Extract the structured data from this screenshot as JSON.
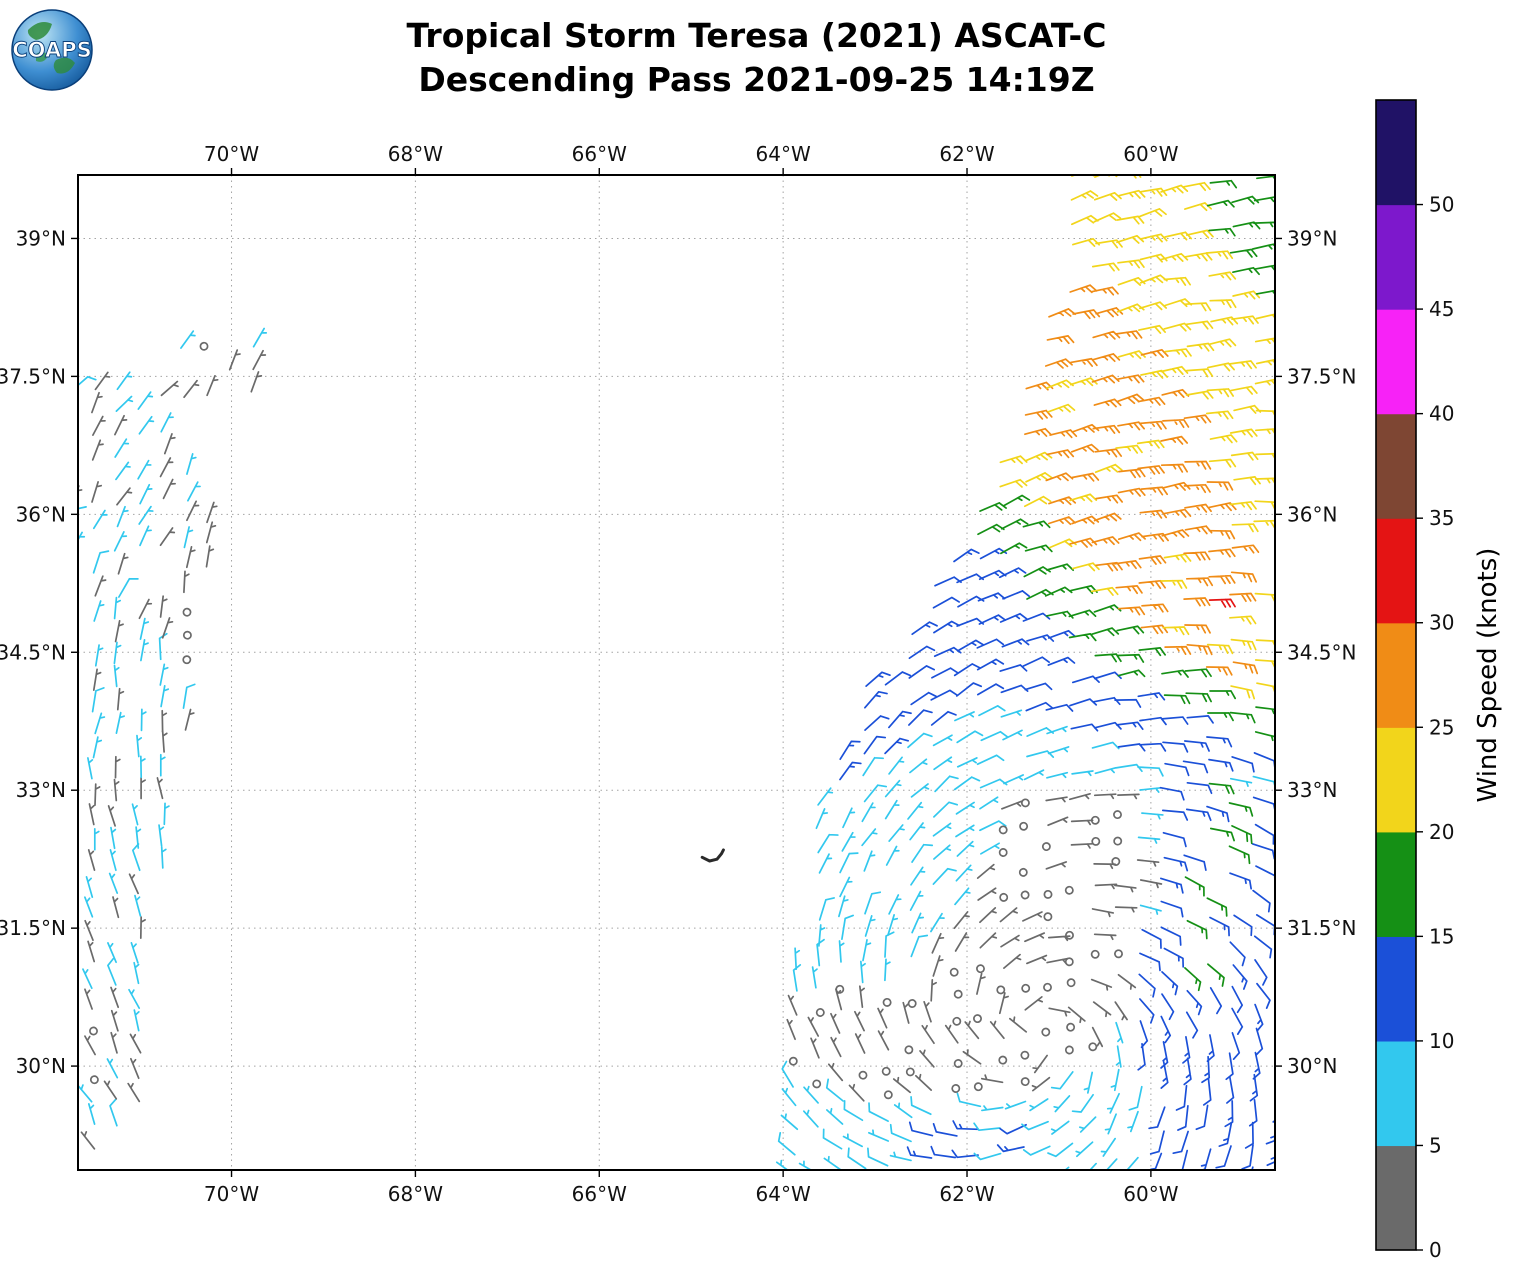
{
  "header": {
    "logo_text": "COAPS",
    "title_line1": "Tropical Storm Teresa (2021) ASCAT-C",
    "title_line2": "Descending Pass 2021-09-25 14:19Z"
  },
  "chart_data": {
    "type": "scatter",
    "subtype": "wind-barb-map",
    "title": "Tropical Storm Teresa (2021) ASCAT-C",
    "subtitle": "Descending Pass 2021-09-25 14:19Z",
    "grid": "dashed",
    "xlim": [
      -71.67,
      -58.65
    ],
    "ylim": [
      28.87,
      39.69
    ],
    "x_ticks": [
      {
        "value": -70,
        "label": "70°W"
      },
      {
        "value": -68,
        "label": "68°W"
      },
      {
        "value": -66,
        "label": "66°W"
      },
      {
        "value": -64,
        "label": "64°W"
      },
      {
        "value": -62,
        "label": "62°W"
      },
      {
        "value": -60,
        "label": "60°W"
      }
    ],
    "y_ticks": [
      {
        "value": 39,
        "label": "39°N"
      },
      {
        "value": 37.5,
        "label": "37.5°N"
      },
      {
        "value": 36,
        "label": "36°N"
      },
      {
        "value": 34.5,
        "label": "34.5°N"
      },
      {
        "value": 33,
        "label": "33°N"
      },
      {
        "value": 31.5,
        "label": "31.5°N"
      },
      {
        "value": 30,
        "label": "30°N"
      }
    ],
    "colorbar": {
      "label": "Wind Speed (knots)",
      "ticks": [
        0,
        5,
        10,
        15,
        20,
        25,
        30,
        35,
        40,
        45,
        50
      ],
      "colors": [
        {
          "range": [
            0,
            5
          ],
          "hex": "#6a6a6a",
          "name": "gray"
        },
        {
          "range": [
            5,
            10
          ],
          "hex": "#32c8ee",
          "name": "cyan"
        },
        {
          "range": [
            10,
            15
          ],
          "hex": "#1b50d8",
          "name": "blue"
        },
        {
          "range": [
            15,
            20
          ],
          "hex": "#159015",
          "name": "green"
        },
        {
          "range": [
            20,
            25
          ],
          "hex": "#f2d51b",
          "name": "yellow"
        },
        {
          "range": [
            25,
            30
          ],
          "hex": "#f08c16",
          "name": "orange"
        },
        {
          "range": [
            30,
            35
          ],
          "hex": "#e41414",
          "name": "red"
        },
        {
          "range": [
            35,
            40
          ],
          "hex": "#7e4633",
          "name": "brown"
        },
        {
          "range": [
            40,
            45
          ],
          "hex": "#f722f7",
          "name": "magenta"
        },
        {
          "range": [
            45,
            50
          ],
          "hex": "#7d18cc",
          "name": "purple"
        },
        {
          "range": [
            50,
            55
          ],
          "hex": "#201266",
          "name": "dark-navy"
        }
      ]
    },
    "storm_center": {
      "lon": -61.3,
      "lat": 30.4
    },
    "land": {
      "bermuda": [
        [
          -64.88,
          32.27
        ],
        [
          -64.8,
          32.23
        ],
        [
          -64.72,
          32.25
        ],
        [
          -64.67,
          32.31
        ],
        [
          -64.65,
          32.35
        ]
      ]
    },
    "barb_field": {
      "units": "knots",
      "grid_spacing_deg": 0.25,
      "swaths": [
        {
          "name": "west-swath",
          "direction_model": "ambient",
          "dir_base": 0,
          "dir_per_lat": 8,
          "dir_jitter": 30,
          "default_speed": 5.5,
          "speed_jitter": 2.5,
          "dropout": 0.12,
          "row_shear": 0.05,
          "polygon": [
            [
              -71.75,
              37.45
            ],
            [
              -71.05,
              37.4
            ],
            [
              -70.55,
              36.7
            ],
            [
              -70.22,
              35.9
            ],
            [
              -70.25,
              34.9
            ],
            [
              -70.5,
              33.6
            ],
            [
              -70.75,
              31.9
            ],
            [
              -70.95,
              30.3
            ],
            [
              -71.05,
              28.9
            ],
            [
              -71.75,
              28.9
            ]
          ],
          "speed_zones": [
            {
              "name": "calm-sw-corner",
              "speed": 2,
              "polygon": [
                [
                  -71.75,
                  30.6
                ],
                [
                  -71.35,
                  30.5
                ],
                [
                  -71.3,
                  29.7
                ],
                [
                  -71.75,
                  29.7
                ]
              ]
            },
            {
              "name": "calm-mid",
              "speed": 3,
              "polygon": [
                [
                  -70.6,
                  35.95
                ],
                [
                  -70.15,
                  35.9
                ],
                [
                  -70.2,
                  34.3
                ],
                [
                  -70.6,
                  34.4
                ]
              ]
            }
          ]
        },
        {
          "name": "northwest-cluster",
          "direction_model": "ambient",
          "dir_base": 20,
          "dir_per_lat": 4,
          "dir_jitter": 40,
          "default_speed": 4,
          "speed_jitter": 3,
          "dropout": 0.38,
          "row_shear": 0.06,
          "polygon": [
            [
              -70.78,
              37.08
            ],
            [
              -69.72,
              37.12
            ],
            [
              -69.68,
              37.98
            ],
            [
              -70.72,
              37.95
            ]
          ],
          "speed_zones": []
        },
        {
          "name": "east-swath",
          "direction_model": "cyclonic",
          "dir_jitter": 16,
          "default_speed": 7,
          "speed_jitter": 2,
          "dropout": 0.07,
          "row_shear": 0.12,
          "polygon": [
            [
              -60.9,
              39.78
            ],
            [
              -58.4,
              39.78
            ],
            [
              -58.4,
              28.82
            ],
            [
              -64.12,
              28.82
            ],
            [
              -64.0,
              30.2
            ],
            [
              -63.85,
              31.5
            ],
            [
              -63.6,
              33.0
            ],
            [
              -63.15,
              34.25
            ],
            [
              -62.65,
              34.9
            ],
            [
              -61.9,
              35.95
            ],
            [
              -61.35,
              37.4
            ],
            [
              -61.05,
              38.6
            ]
          ],
          "speed_zones": [
            {
              "name": "red-spot",
              "speed": 32,
              "polygon": [
                [
                  -59.6,
                  35.3
                ],
                [
                  -59.15,
                  35.3
                ],
                [
                  -59.15,
                  34.85
                ],
                [
                  -59.6,
                  34.85
                ]
              ]
            },
            {
              "name": "green-top-right",
              "speed": 17,
              "polygon": [
                [
                  -59.6,
                  39.8
                ],
                [
                  -58.35,
                  39.8
                ],
                [
                  -58.35,
                  38.0
                ],
                [
                  -59.25,
                  38.5
                ]
              ]
            },
            {
              "name": "orange-band",
              "speed": 26,
              "polygon": [
                [
                  -62.15,
                  38.5
                ],
                [
                  -61.3,
                  39.1
                ],
                [
                  -60.4,
                  38.35
                ],
                [
                  -59.5,
                  36.9
                ],
                [
                  -58.95,
                  35.3
                ],
                [
                  -58.95,
                  34.2
                ],
                [
                  -59.9,
                  34.45
                ],
                [
                  -60.8,
                  35.4
                ],
                [
                  -61.75,
                  36.9
                ]
              ]
            },
            {
              "name": "yellow-region",
              "speed": 22,
              "polygon": [
                [
                  -62.4,
                  39.8
                ],
                [
                  -58.35,
                  39.8
                ],
                [
                  -58.35,
                  33.85
                ],
                [
                  -59.0,
                  34.05
                ],
                [
                  -59.9,
                  34.45
                ],
                [
                  -60.6,
                  35.0
                ],
                [
                  -61.3,
                  35.85
                ],
                [
                  -61.9,
                  36.55
                ],
                [
                  -62.4,
                  37.6
                ]
              ]
            },
            {
              "name": "green-band",
              "speed": 17,
              "polygon": [
                [
                  -61.9,
                  36.55
                ],
                [
                  -61.3,
                  35.85
                ],
                [
                  -60.6,
                  35.0
                ],
                [
                  -59.9,
                  34.45
                ],
                [
                  -59.0,
                  34.05
                ],
                [
                  -58.35,
                  33.85
                ],
                [
                  -58.35,
                  33.5
                ],
                [
                  -59.3,
                  33.75
                ],
                [
                  -60.3,
                  34.15
                ],
                [
                  -61.05,
                  34.65
                ],
                [
                  -61.75,
                  35.45
                ],
                [
                  -62.3,
                  36.2
                ],
                [
                  -62.35,
                  36.9
                ]
              ]
            },
            {
              "name": "green-right-streak",
              "speed": 16,
              "polygon": [
                [
                  -59.5,
                  33.2
                ],
                [
                  -59.05,
                  33.1
                ],
                [
                  -59.25,
                  30.8
                ],
                [
                  -59.75,
                  31.1
                ]
              ]
            },
            {
              "name": "blue-west-band",
              "speed": 12,
              "polygon": [
                [
                  -64.2,
                  36.9
                ],
                [
                  -62.35,
                  36.9
                ],
                [
                  -62.3,
                  36.2
                ],
                [
                  -61.75,
                  35.45
                ],
                [
                  -61.05,
                  34.65
                ],
                [
                  -60.3,
                  34.15
                ],
                [
                  -59.3,
                  33.75
                ],
                [
                  -58.35,
                  33.5
                ],
                [
                  -58.35,
                  33.1
                ],
                [
                  -59.95,
                  33.25
                ],
                [
                  -60.9,
                  33.6
                ],
                [
                  -61.9,
                  34.0
                ],
                [
                  -62.9,
                  33.35
                ],
                [
                  -63.55,
                  32.9
                ],
                [
                  -64.2,
                  32.9
                ]
              ]
            },
            {
              "name": "blue-right-strip",
              "speed": 12,
              "polygon": [
                [
                  -59.95,
                  33.2
                ],
                [
                  -58.35,
                  33.0
                ],
                [
                  -58.35,
                  28.78
                ],
                [
                  -59.95,
                  28.78
                ],
                [
                  -60.2,
                  30.5
                ],
                [
                  -60.05,
                  32.0
                ]
              ]
            },
            {
              "name": "gray-core",
              "speed": 3,
              "polygon": [
                [
                  -61.7,
                  33.05
                ],
                [
                  -60.35,
                  33.2
                ],
                [
                  -60.05,
                  32.2
                ],
                [
                  -60.3,
                  30.9
                ],
                [
                  -60.6,
                  30.15
                ],
                [
                  -61.6,
                  29.6
                ],
                [
                  -63.1,
                  29.55
                ],
                [
                  -63.95,
                  29.95
                ],
                [
                  -63.9,
                  30.8
                ],
                [
                  -62.6,
                  30.95
                ],
                [
                  -61.95,
                  31.8
                ]
              ]
            },
            {
              "name": "blue-bottom-patch",
              "speed": 11,
              "polygon": [
                [
                  -62.4,
                  29.45
                ],
                [
                  -61.3,
                  29.5
                ],
                [
                  -60.7,
                  29.05
                ],
                [
                  -61.1,
                  28.8
                ],
                [
                  -62.5,
                  28.82
                ]
              ]
            }
          ]
        }
      ]
    }
  }
}
